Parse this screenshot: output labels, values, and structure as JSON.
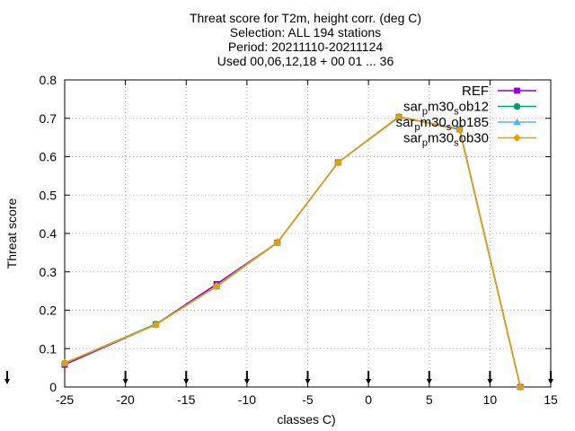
{
  "chart_data": {
    "type": "line",
    "title_lines": [
      "Threat score  for T2m, height corr. (deg C)",
      "Selection: ALL    194 stations",
      "Period: 20211110-20211124",
      "Used 00,06,12,18 + 00 01 ... 36"
    ],
    "xlabel": "classes C)",
    "ylabel": "Threat score",
    "xlim": [
      -25,
      15
    ],
    "ylim": [
      0,
      0.8
    ],
    "xticks": [
      "-25",
      "-20",
      "-15",
      "-10",
      "-5",
      "0",
      "5",
      "10",
      "15"
    ],
    "yticks": [
      "0",
      "0.1",
      "0.2",
      "0.3",
      "0.4",
      "0.5",
      "0.6",
      "0.7",
      "0.8"
    ],
    "grid": true,
    "legend_position": "top-right",
    "class_markers_x": [
      -25,
      -20,
      -15,
      -10,
      -5,
      0,
      5,
      10,
      15
    ],
    "series": [
      {
        "name": "REF",
        "legend_parts": [
          [
            "REF",
            ""
          ]
        ],
        "color": "#9400d3",
        "marker": "square",
        "x": [
          -25,
          -17.5,
          -12.5,
          -7.5,
          -2.5,
          2.5,
          7.5,
          12.5
        ],
        "y": [
          0.058,
          0.163,
          0.268,
          0.376,
          0.585,
          0.703,
          0.672,
          0.0
        ]
      },
      {
        "name": "sar_pm30_sob12",
        "legend_parts": [
          [
            "sar",
            ""
          ],
          [
            "p",
            "sub"
          ],
          [
            "m30",
            ""
          ],
          [
            "s",
            "sub"
          ],
          [
            "ob12",
            ""
          ]
        ],
        "color": "#009e73",
        "marker": "circle",
        "x": [
          -25,
          -17.5,
          -12.5,
          -7.5,
          -2.5,
          2.5,
          7.5,
          12.5
        ],
        "y": [
          0.062,
          0.164,
          0.262,
          0.376,
          0.585,
          0.704,
          0.671,
          0.0
        ]
      },
      {
        "name": "sar_pm30_sob185",
        "legend_parts": [
          [
            "sar",
            ""
          ],
          [
            "p",
            "sub"
          ],
          [
            "m30",
            ""
          ],
          [
            "s",
            "sub"
          ],
          [
            "ob185",
            ""
          ]
        ],
        "color": "#56b4e9",
        "marker": "triangle",
        "x": [
          -25,
          -17.5,
          -12.5,
          -7.5,
          -2.5,
          2.5,
          7.5,
          12.5
        ],
        "y": [
          0.062,
          0.163,
          0.262,
          0.376,
          0.585,
          0.704,
          0.671,
          0.0
        ]
      },
      {
        "name": "sar_pm30_sob30",
        "legend_parts": [
          [
            "sar",
            ""
          ],
          [
            "p",
            "sub"
          ],
          [
            "m30",
            ""
          ],
          [
            "s",
            "sub"
          ],
          [
            "ob30",
            ""
          ]
        ],
        "color": "#e69f00",
        "marker": "diamond",
        "x": [
          -25,
          -17.5,
          -12.5,
          -7.5,
          -2.5,
          2.5,
          7.5,
          12.5
        ],
        "y": [
          0.063,
          0.162,
          0.263,
          0.377,
          0.585,
          0.704,
          0.67,
          0.0
        ]
      }
    ]
  }
}
